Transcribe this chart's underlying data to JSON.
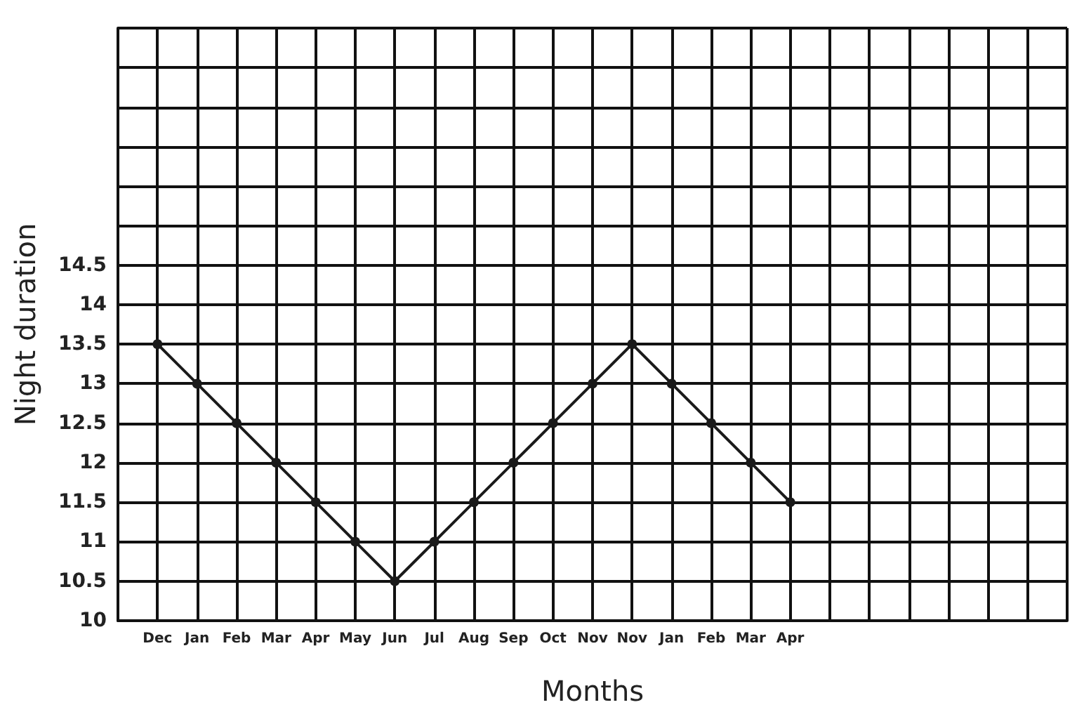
{
  "chart_data": {
    "type": "line",
    "xlabel": "Months",
    "ylabel": "Night duration",
    "categories": [
      null,
      "Dec",
      "Jan",
      "Feb",
      "Mar",
      "Apr",
      "May",
      "Jun",
      "Jul",
      "Aug",
      "Sep",
      "Oct",
      "Nov",
      "Nov",
      "Jan",
      "Feb",
      "Mar",
      "Apr",
      null,
      null,
      null,
      null,
      null,
      null,
      null
    ],
    "series": [
      {
        "color": "#1a1a1a",
        "values": [
          null,
          13.5,
          13,
          12.5,
          12,
          11.5,
          11,
          10.5,
          11,
          11.5,
          12,
          12.5,
          13,
          13.5,
          13,
          12.5,
          12,
          11.5,
          null,
          null,
          null,
          null,
          null,
          null,
          null
        ]
      }
    ],
    "ylim": [
      10,
      17.5
    ],
    "yticks": [
      10,
      10.5,
      11,
      11.5,
      12,
      12.5,
      13,
      13.5,
      14,
      14.5,
      {
        "value": 15,
        "label": null
      },
      {
        "value": 15.5,
        "label": null
      },
      {
        "value": 16,
        "label": null
      },
      {
        "value": 16.5,
        "label": null
      },
      {
        "value": 17,
        "label": null
      },
      {
        "value": 17.5,
        "label": null
      }
    ],
    "grid": true,
    "marker": "circle",
    "line_style": "solid"
  }
}
